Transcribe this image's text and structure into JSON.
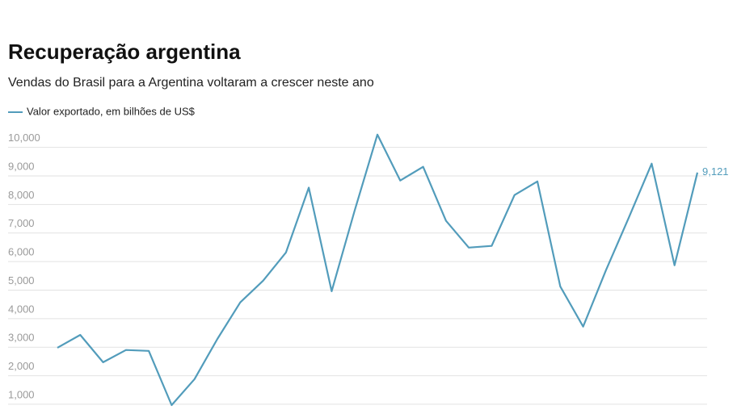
{
  "chart_data": {
    "type": "line",
    "title": "Recuperação argentina",
    "subtitle": "Vendas do Brasil para a Argentina voltaram a crescer neste ano",
    "series": [
      {
        "name": "Valor exportado, em bilhões de US$",
        "color": "#529cbb",
        "values": [
          2980,
          3430,
          2470,
          2900,
          2870,
          970,
          1880,
          3290,
          4570,
          5330,
          6320,
          8590,
          4960,
          7770,
          10450,
          8840,
          9320,
          7430,
          6490,
          6550,
          8330,
          8810,
          5130,
          3720,
          5700,
          7540,
          9430,
          5870,
          9121
        ],
        "value_labels": [
          null,
          null,
          null,
          null,
          null,
          null,
          null,
          null,
          null,
          null,
          null,
          null,
          null,
          null,
          null,
          null,
          null,
          null,
          null,
          null,
          null,
          null,
          null,
          null,
          null,
          null,
          null,
          null,
          "9,121"
        ]
      }
    ],
    "ylim": [
      800,
      10500
    ],
    "yticks": [
      {
        "value": 1000,
        "label": "1,000"
      },
      {
        "value": 2000,
        "label": "2,000"
      },
      {
        "value": 3000,
        "label": "3,000"
      },
      {
        "value": 4000,
        "label": "4,000"
      },
      {
        "value": 5000,
        "label": "5,000"
      },
      {
        "value": 6000,
        "label": "6,000"
      },
      {
        "value": 7000,
        "label": "7,000"
      },
      {
        "value": 8000,
        "label": "8,000"
      },
      {
        "value": 9000,
        "label": "9,000"
      },
      {
        "value": 10000,
        "label": "10,000"
      }
    ],
    "grid": true
  }
}
